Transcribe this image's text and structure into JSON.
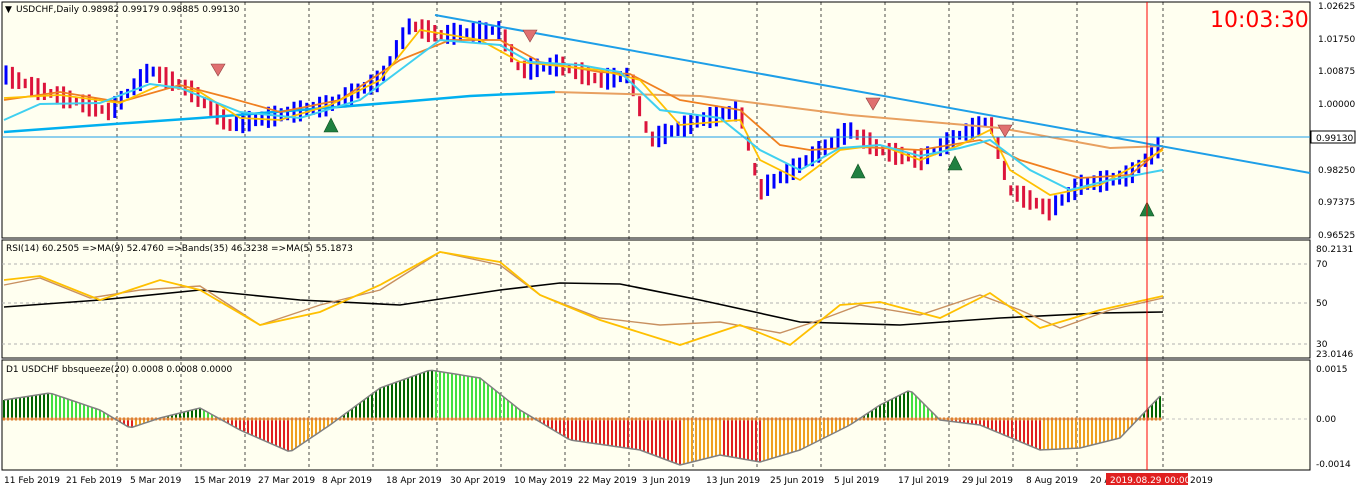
{
  "symbol": {
    "name": "USDCHF",
    "timeframe": "Daily",
    "ohlc": "0.98982 0.99179 0.98885 0.99130"
  },
  "clock": "10:03:30",
  "price_axis": {
    "labels": [
      "1.02625",
      "1.01750",
      "1.00875",
      "1.00000",
      "0.98250",
      "0.97375",
      "0.96525"
    ],
    "current_price": "0.99130"
  },
  "rsi_panel": {
    "header": "RSI(14) 60.2505  =>MA(9) 52.4760  =>Bands(35) 46.3238  =>MA(5) 55.1873",
    "axis_labels": [
      "80.2131",
      "70",
      "50",
      "30",
      "23.0146"
    ]
  },
  "bbs_panel": {
    "header": "D1 USDCHF bbsqueeze(20) 0.0008 0.0008 0.0000",
    "axis_labels": [
      "0.0015",
      "0.00",
      "-0.0014"
    ]
  },
  "time_axis": {
    "labels": [
      "11 Feb 2019",
      "21 Feb 2019",
      "5 Mar 2019",
      "15 Mar 2019",
      "27 Mar 2019",
      "8 Apr 2019",
      "18 Apr 2019",
      "30 Apr 2019",
      "10 May 2019",
      "22 May 2019",
      "3 Jun 2019",
      "13 Jun 2019",
      "25 Jun 2019",
      "5 Jul 2019",
      "17 Jul 2019",
      "29 Jul 2019",
      "8 Aug 2019",
      "20 A"
    ],
    "cursor_label": "2019.08.29 00:00",
    "last_fragment": "2019"
  },
  "colors": {
    "background": "#fffff0",
    "bull_candle": "#0000ff",
    "bear_candle": "#dc143c",
    "trendline": "#1e9fe8",
    "ma_fast": "#40d0f0",
    "ma_slow": "#00b0f0",
    "ma_orange": "#f08020",
    "ma_yellow": "#ffc000",
    "ma_tan": "#e8a060",
    "squeeze_green_dark": "#006400",
    "squeeze_green_light": "#40e040",
    "squeeze_red": "#e02020",
    "squeeze_orange": "#f0a020",
    "cursor_line": "#ff0000"
  }
}
